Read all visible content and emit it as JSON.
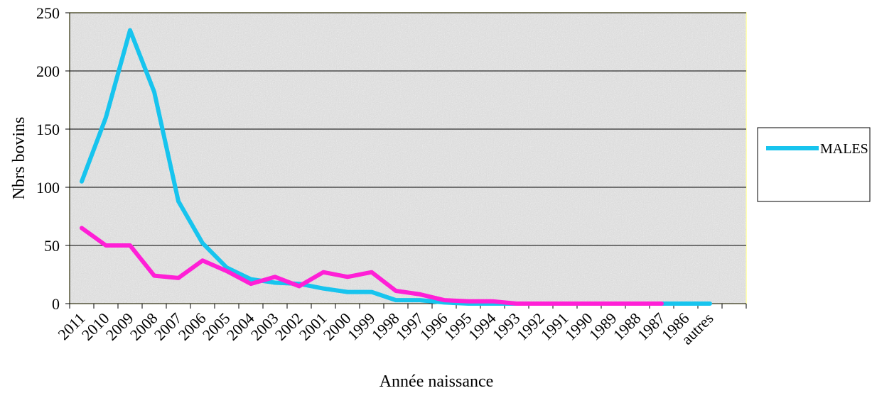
{
  "chart_data": {
    "type": "line",
    "categories": [
      "2011",
      "2010",
      "2009",
      "2008",
      "2007",
      "2006",
      "2005",
      "2004",
      "2003",
      "2002",
      "2001",
      "2000",
      "1999",
      "1998",
      "1997",
      "1996",
      "1995",
      "1994",
      "1993",
      "1992",
      "1991",
      "1990",
      "1989",
      "1988",
      "1987",
      "1986",
      "autres"
    ],
    "series": [
      {
        "name": "MALES",
        "color": "#17c4ee",
        "values": [
          105,
          160,
          235,
          182,
          88,
          52,
          31,
          21,
          18,
          17,
          13,
          10,
          10,
          3,
          3,
          1,
          0,
          0,
          0,
          0,
          0,
          0,
          0,
          0,
          0,
          0,
          0
        ]
      },
      {
        "name": "",
        "color": "#ff1fd6",
        "values": [
          65,
          50,
          50,
          24,
          22,
          37,
          28,
          17,
          23,
          15,
          27,
          23,
          27,
          11,
          8,
          3,
          2,
          2,
          0,
          0,
          0,
          0,
          0,
          0,
          0,
          null,
          null
        ]
      }
    ],
    "xlabel": "Année naissance",
    "ylabel": "Nbrs bovins",
    "ylim": [
      0,
      250
    ],
    "yticks": [
      0,
      50,
      100,
      150,
      200,
      250
    ],
    "grid": true,
    "legend_position": "right",
    "legend": [
      "MALES"
    ],
    "plot_background": "#d9d9d9",
    "gridline_color": "#000000",
    "plot_border_color": "#ffff99"
  }
}
